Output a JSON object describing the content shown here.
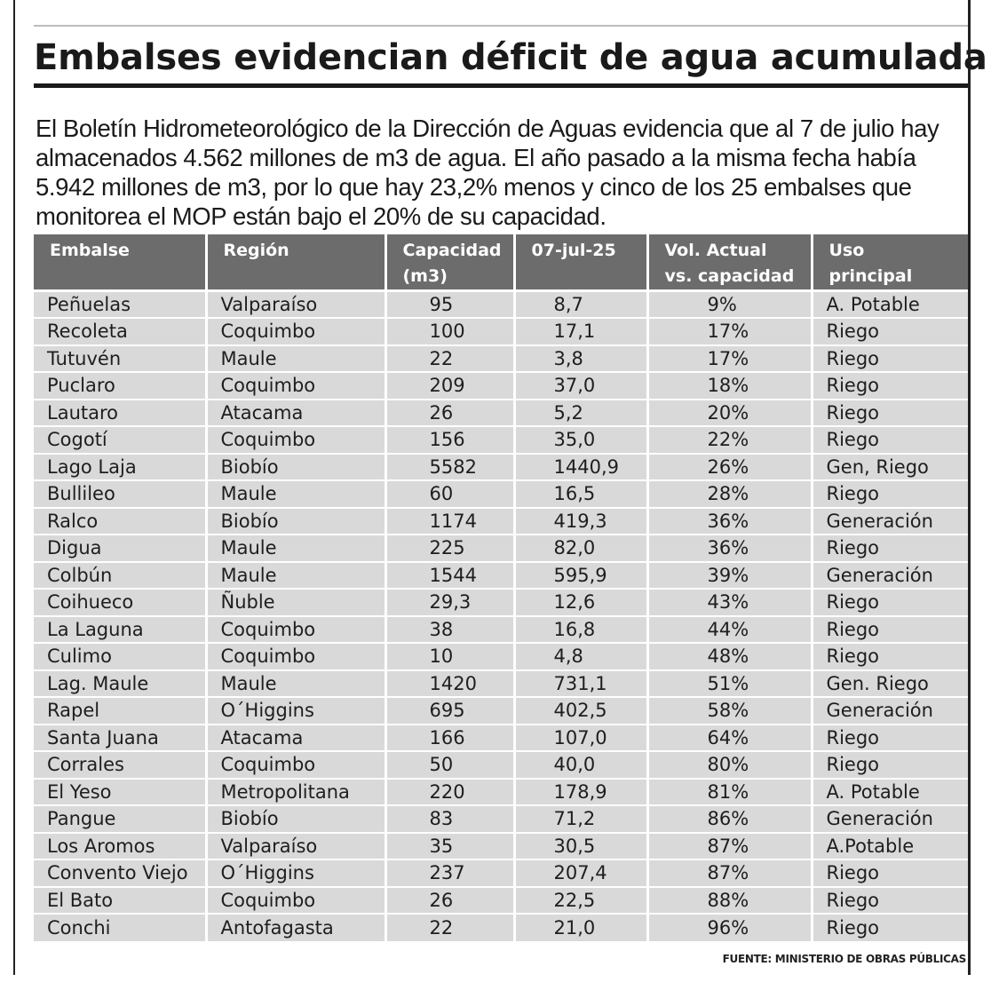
{
  "title": "Embalses evidencian déficit de agua acumulada",
  "lede": "El Boletín Hidrometeorológico de la Dirección de Aguas evidencia que al 7 de julio hay almacenados 4.562 millones de m3 de agua. El año pasado a la misma fecha había 5.942 millones de m3, por lo que hay 23,2% menos y cinco de los 25 embalses que monitorea el MOP están bajo el 20% de su capacidad.",
  "table": {
    "headers": {
      "embalse": "Embalse",
      "region": "Región",
      "capacidad_l1": "Capacidad",
      "capacidad_l2": "(m3)",
      "fecha": "07-jul-25",
      "vol_l1": "Vol. Actual",
      "vol_l2": "vs. capacidad",
      "uso_l1": "Uso",
      "uso_l2": "principal"
    },
    "rows": [
      [
        "Peñuelas",
        "Valparaíso",
        "95",
        "8,7",
        "9%",
        "A. Potable"
      ],
      [
        "Recoleta",
        "Coquimbo",
        "100",
        "17,1",
        "17%",
        "Riego"
      ],
      [
        "Tutuvén",
        "Maule",
        "22",
        "3,8",
        "17%",
        "Riego"
      ],
      [
        "Puclaro",
        "Coquimbo",
        "209",
        "37,0",
        "18%",
        "Riego"
      ],
      [
        "Lautaro",
        "Atacama",
        "26",
        "5,2",
        "20%",
        "Riego"
      ],
      [
        "Cogotí",
        "Coquimbo",
        "156",
        "35,0",
        "22%",
        "Riego"
      ],
      [
        "Lago Laja",
        "Biobío",
        "5582",
        "1440,9",
        "26%",
        "Gen, Riego"
      ],
      [
        "Bullileo",
        "Maule",
        "60",
        "16,5",
        "28%",
        "Riego"
      ],
      [
        "Ralco",
        "Biobío",
        "1174",
        "419,3",
        "36%",
        "Generación"
      ],
      [
        "Digua",
        "Maule",
        "225",
        "82,0",
        "36%",
        "Riego"
      ],
      [
        "Colbún",
        "Maule",
        "1544",
        "595,9",
        "39%",
        "Generación"
      ],
      [
        "Coihueco",
        "Ñuble",
        "29,3",
        "12,6",
        "43%",
        "Riego"
      ],
      [
        "La Laguna",
        "Coquimbo",
        "38",
        "16,8",
        "44%",
        "Riego"
      ],
      [
        "Culimo",
        "Coquimbo",
        "10",
        "4,8",
        "48%",
        "Riego"
      ],
      [
        "Lag. Maule",
        "Maule",
        "1420",
        "731,1",
        "51%",
        "Gen. Riego"
      ],
      [
        "Rapel",
        "O´Higgins",
        "695",
        "402,5",
        "58%",
        "Generación"
      ],
      [
        "Santa Juana",
        "Atacama",
        "166",
        "107,0",
        "64%",
        "Riego"
      ],
      [
        "Corrales",
        "Coquimbo",
        "50",
        "40,0",
        "80%",
        "Riego"
      ],
      [
        "El Yeso",
        "Metropolitana",
        "220",
        "178,9",
        "81%",
        "A. Potable"
      ],
      [
        "Pangue",
        "Biobío",
        "83",
        "71,2",
        "86%",
        "Generación"
      ],
      [
        "Los Aromos",
        "Valparaíso",
        "35",
        "30,5",
        "87%",
        "A.Potable"
      ],
      [
        "Convento Viejo",
        "O´Higgins",
        "237",
        "207,4",
        "87%",
        "Riego"
      ],
      [
        "El Bato",
        "Coquimbo",
        "26",
        "22,5",
        "88%",
        "Riego"
      ],
      [
        "Conchi",
        "Antofagasta",
        "22",
        "21,0",
        "96%",
        "Riego"
      ]
    ]
  },
  "source": "FUENTE: MINISTERIO DE OBRAS PÚBLICAS"
}
